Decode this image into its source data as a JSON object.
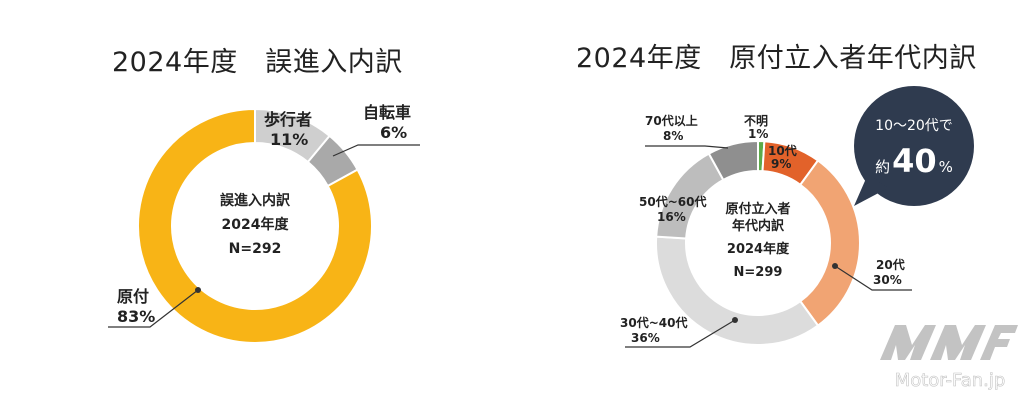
{
  "left": {
    "title": "2024年度　誤進入内訳",
    "center": [
      "誤進入内訳",
      "2024年度",
      "N=292"
    ],
    "chart_data": {
      "type": "pie",
      "title": "2024年度　誤進入内訳",
      "categories": [
        "歩行者",
        "自転車",
        "原付"
      ],
      "values": [
        11,
        6,
        83
      ],
      "value_labels": [
        "11%",
        "6%",
        "83%"
      ],
      "unit": "%",
      "n": 292,
      "colors": [
        "#cfcfcf",
        "#a9a9a9",
        "#f8b416"
      ]
    }
  },
  "right": {
    "title": "2024年度　原付立入者年代内訳",
    "center": [
      "原付立入者",
      "年代内訳",
      "2024年度",
      "N=299"
    ],
    "chart_data": {
      "type": "pie",
      "title": "2024年度　原付立入者年代内訳",
      "categories": [
        "不明",
        "10代",
        "20代",
        "30代~40代",
        "50代~60代",
        "70代以上"
      ],
      "values": [
        1,
        9,
        30,
        36,
        16,
        8
      ],
      "value_labels": [
        "1%",
        "9%",
        "30%",
        "36%",
        "16%",
        "8%"
      ],
      "unit": "%",
      "n": 299,
      "colors": [
        "#5cab4a",
        "#e2622a",
        "#f1a473",
        "#dcdcdc",
        "#bdbdbd",
        "#8f8f8f"
      ]
    }
  },
  "callout": {
    "line1": "10～20代で",
    "prefix": "約",
    "value": "40",
    "suffix": "%",
    "color": "#2f3b4f"
  },
  "watermark": {
    "site": "Motor-Fan.jp"
  }
}
